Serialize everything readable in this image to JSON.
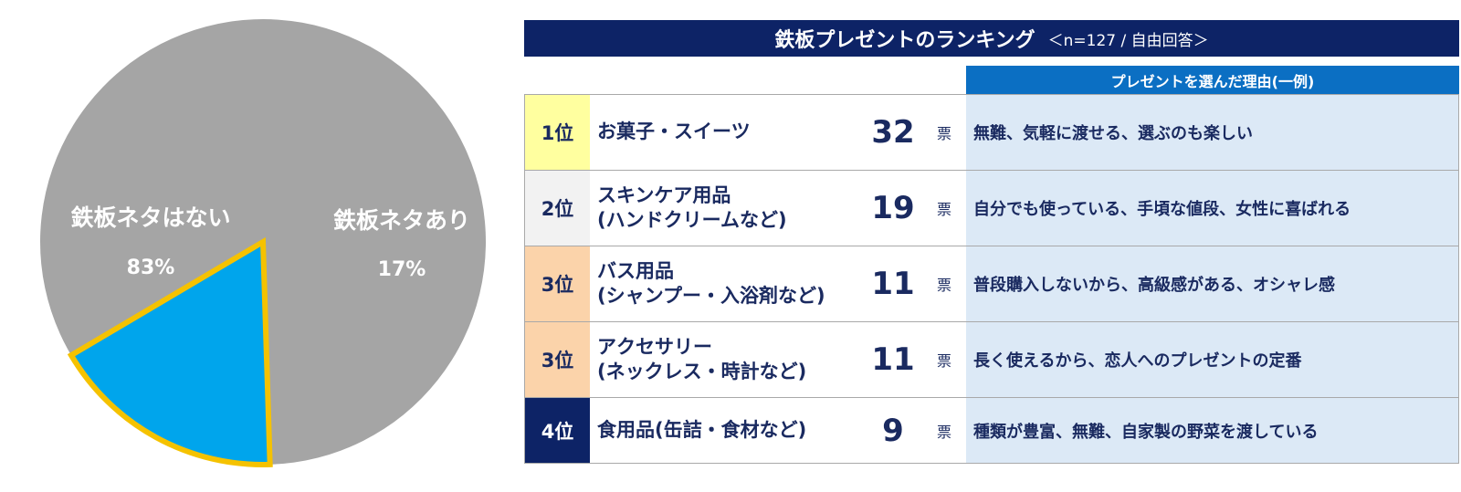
{
  "chart_data": [
    {
      "type": "pie",
      "slices": [
        {
          "name": "鉄板ネタはない",
          "value": 83,
          "label": "83%",
          "color": "#a5a5a5"
        },
        {
          "name": "鉄板ネタあり",
          "value": 17,
          "label": "17%",
          "color": "#00a5ec",
          "outline": "#f5c200"
        }
      ]
    },
    {
      "type": "table",
      "title": "鉄板プレゼントのランキング",
      "subtitle": "＜n=127 / 自由回答＞",
      "reason_header": "プレゼントを選んだ理由(一例)",
      "unit": "票",
      "rows": [
        {
          "rank": "1位",
          "item": [
            "お菓子・スイーツ"
          ],
          "count": "32",
          "reason": "無難、気軽に渡せる、選ぶのも楽しい",
          "rank_bg": "#ffff9f",
          "rank_color": "#1a2a60"
        },
        {
          "rank": "2位",
          "item": [
            "スキンケア用品",
            "(ハンドクリームなど)"
          ],
          "count": "19",
          "reason": "自分でも使っている、手頃な値段、女性に喜ばれる",
          "rank_bg": "#f2f2f2",
          "rank_color": "#1a2a60"
        },
        {
          "rank": "3位",
          "item": [
            "バス用品",
            "(シャンプー・入浴剤など)"
          ],
          "count": "11",
          "reason": "普段購入しないから、高級感がある、オシャレ感",
          "rank_bg": "#fbd3aa",
          "rank_color": "#1a2a60"
        },
        {
          "rank": "3位",
          "item": [
            "アクセサリー",
            "(ネックレス・時計など)"
          ],
          "count": "11",
          "reason": "長く使えるから、恋人へのプレゼントの定番",
          "rank_bg": "#fbd3aa",
          "rank_color": "#1a2a60"
        },
        {
          "rank": "4位",
          "item": [
            "食用品(缶詰・食材など)"
          ],
          "count": "9",
          "reason": "種類が豊富、無難、自家製の野菜を渡している",
          "rank_bg": "#0d2366",
          "rank_color": "#ffffff"
        }
      ]
    }
  ]
}
